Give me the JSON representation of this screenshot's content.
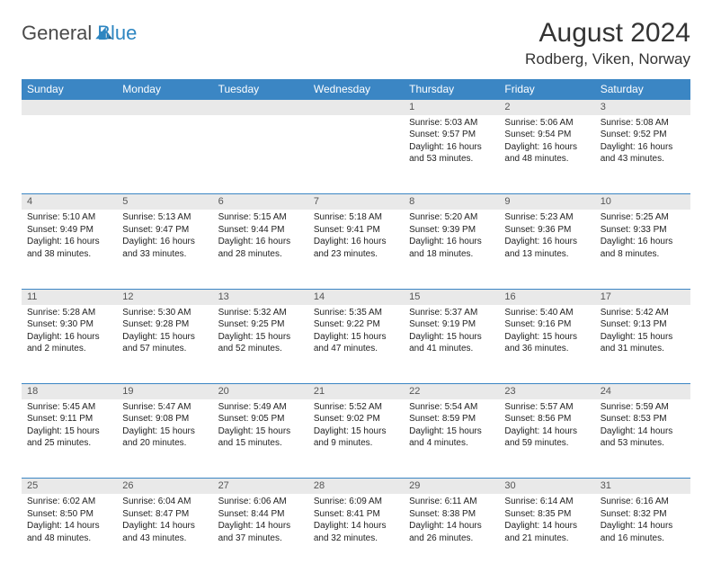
{
  "brand": {
    "part1": "General",
    "part2": "Blue",
    "color_gray": "#4a4a4a",
    "color_blue": "#2e86c1"
  },
  "title": "August 2024",
  "location": "Rodberg, Viken, Norway",
  "header_bg": "#3b86c4",
  "daynum_bg": "#e9e9e9",
  "days": [
    "Sunday",
    "Monday",
    "Tuesday",
    "Wednesday",
    "Thursday",
    "Friday",
    "Saturday"
  ],
  "weeks": [
    {
      "nums": [
        "",
        "",
        "",
        "",
        "1",
        "2",
        "3"
      ],
      "cells": [
        null,
        null,
        null,
        null,
        {
          "sunrise": "Sunrise: 5:03 AM",
          "sunset": "Sunset: 9:57 PM",
          "day1": "Daylight: 16 hours",
          "day2": "and 53 minutes."
        },
        {
          "sunrise": "Sunrise: 5:06 AM",
          "sunset": "Sunset: 9:54 PM",
          "day1": "Daylight: 16 hours",
          "day2": "and 48 minutes."
        },
        {
          "sunrise": "Sunrise: 5:08 AM",
          "sunset": "Sunset: 9:52 PM",
          "day1": "Daylight: 16 hours",
          "day2": "and 43 minutes."
        }
      ]
    },
    {
      "nums": [
        "4",
        "5",
        "6",
        "7",
        "8",
        "9",
        "10"
      ],
      "cells": [
        {
          "sunrise": "Sunrise: 5:10 AM",
          "sunset": "Sunset: 9:49 PM",
          "day1": "Daylight: 16 hours",
          "day2": "and 38 minutes."
        },
        {
          "sunrise": "Sunrise: 5:13 AM",
          "sunset": "Sunset: 9:47 PM",
          "day1": "Daylight: 16 hours",
          "day2": "and 33 minutes."
        },
        {
          "sunrise": "Sunrise: 5:15 AM",
          "sunset": "Sunset: 9:44 PM",
          "day1": "Daylight: 16 hours",
          "day2": "and 28 minutes."
        },
        {
          "sunrise": "Sunrise: 5:18 AM",
          "sunset": "Sunset: 9:41 PM",
          "day1": "Daylight: 16 hours",
          "day2": "and 23 minutes."
        },
        {
          "sunrise": "Sunrise: 5:20 AM",
          "sunset": "Sunset: 9:39 PM",
          "day1": "Daylight: 16 hours",
          "day2": "and 18 minutes."
        },
        {
          "sunrise": "Sunrise: 5:23 AM",
          "sunset": "Sunset: 9:36 PM",
          "day1": "Daylight: 16 hours",
          "day2": "and 13 minutes."
        },
        {
          "sunrise": "Sunrise: 5:25 AM",
          "sunset": "Sunset: 9:33 PM",
          "day1": "Daylight: 16 hours",
          "day2": "and 8 minutes."
        }
      ]
    },
    {
      "nums": [
        "11",
        "12",
        "13",
        "14",
        "15",
        "16",
        "17"
      ],
      "cells": [
        {
          "sunrise": "Sunrise: 5:28 AM",
          "sunset": "Sunset: 9:30 PM",
          "day1": "Daylight: 16 hours",
          "day2": "and 2 minutes."
        },
        {
          "sunrise": "Sunrise: 5:30 AM",
          "sunset": "Sunset: 9:28 PM",
          "day1": "Daylight: 15 hours",
          "day2": "and 57 minutes."
        },
        {
          "sunrise": "Sunrise: 5:32 AM",
          "sunset": "Sunset: 9:25 PM",
          "day1": "Daylight: 15 hours",
          "day2": "and 52 minutes."
        },
        {
          "sunrise": "Sunrise: 5:35 AM",
          "sunset": "Sunset: 9:22 PM",
          "day1": "Daylight: 15 hours",
          "day2": "and 47 minutes."
        },
        {
          "sunrise": "Sunrise: 5:37 AM",
          "sunset": "Sunset: 9:19 PM",
          "day1": "Daylight: 15 hours",
          "day2": "and 41 minutes."
        },
        {
          "sunrise": "Sunrise: 5:40 AM",
          "sunset": "Sunset: 9:16 PM",
          "day1": "Daylight: 15 hours",
          "day2": "and 36 minutes."
        },
        {
          "sunrise": "Sunrise: 5:42 AM",
          "sunset": "Sunset: 9:13 PM",
          "day1": "Daylight: 15 hours",
          "day2": "and 31 minutes."
        }
      ]
    },
    {
      "nums": [
        "18",
        "19",
        "20",
        "21",
        "22",
        "23",
        "24"
      ],
      "cells": [
        {
          "sunrise": "Sunrise: 5:45 AM",
          "sunset": "Sunset: 9:11 PM",
          "day1": "Daylight: 15 hours",
          "day2": "and 25 minutes."
        },
        {
          "sunrise": "Sunrise: 5:47 AM",
          "sunset": "Sunset: 9:08 PM",
          "day1": "Daylight: 15 hours",
          "day2": "and 20 minutes."
        },
        {
          "sunrise": "Sunrise: 5:49 AM",
          "sunset": "Sunset: 9:05 PM",
          "day1": "Daylight: 15 hours",
          "day2": "and 15 minutes."
        },
        {
          "sunrise": "Sunrise: 5:52 AM",
          "sunset": "Sunset: 9:02 PM",
          "day1": "Daylight: 15 hours",
          "day2": "and 9 minutes."
        },
        {
          "sunrise": "Sunrise: 5:54 AM",
          "sunset": "Sunset: 8:59 PM",
          "day1": "Daylight: 15 hours",
          "day2": "and 4 minutes."
        },
        {
          "sunrise": "Sunrise: 5:57 AM",
          "sunset": "Sunset: 8:56 PM",
          "day1": "Daylight: 14 hours",
          "day2": "and 59 minutes."
        },
        {
          "sunrise": "Sunrise: 5:59 AM",
          "sunset": "Sunset: 8:53 PM",
          "day1": "Daylight: 14 hours",
          "day2": "and 53 minutes."
        }
      ]
    },
    {
      "nums": [
        "25",
        "26",
        "27",
        "28",
        "29",
        "30",
        "31"
      ],
      "cells": [
        {
          "sunrise": "Sunrise: 6:02 AM",
          "sunset": "Sunset: 8:50 PM",
          "day1": "Daylight: 14 hours",
          "day2": "and 48 minutes."
        },
        {
          "sunrise": "Sunrise: 6:04 AM",
          "sunset": "Sunset: 8:47 PM",
          "day1": "Daylight: 14 hours",
          "day2": "and 43 minutes."
        },
        {
          "sunrise": "Sunrise: 6:06 AM",
          "sunset": "Sunset: 8:44 PM",
          "day1": "Daylight: 14 hours",
          "day2": "and 37 minutes."
        },
        {
          "sunrise": "Sunrise: 6:09 AM",
          "sunset": "Sunset: 8:41 PM",
          "day1": "Daylight: 14 hours",
          "day2": "and 32 minutes."
        },
        {
          "sunrise": "Sunrise: 6:11 AM",
          "sunset": "Sunset: 8:38 PM",
          "day1": "Daylight: 14 hours",
          "day2": "and 26 minutes."
        },
        {
          "sunrise": "Sunrise: 6:14 AM",
          "sunset": "Sunset: 8:35 PM",
          "day1": "Daylight: 14 hours",
          "day2": "and 21 minutes."
        },
        {
          "sunrise": "Sunrise: 6:16 AM",
          "sunset": "Sunset: 8:32 PM",
          "day1": "Daylight: 14 hours",
          "day2": "and 16 minutes."
        }
      ]
    }
  ]
}
